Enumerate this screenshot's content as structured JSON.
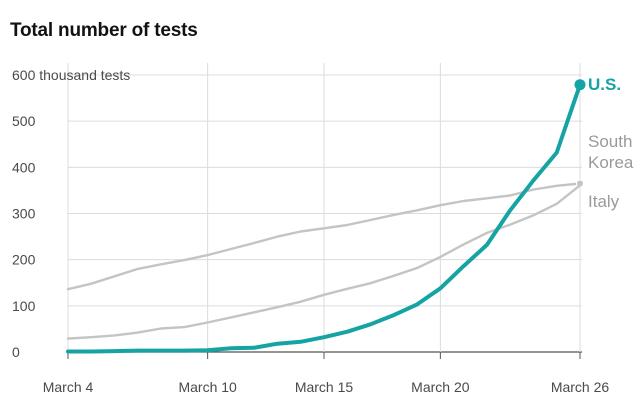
{
  "chart_data": {
    "type": "line",
    "title": "Total number of tests",
    "y_unit_label": "600 thousand tests",
    "y_ticks": [
      {
        "value": 600,
        "label": "600 thousand tests"
      },
      {
        "value": 500,
        "label": "500"
      },
      {
        "value": 400,
        "label": "400"
      },
      {
        "value": 300,
        "label": "300"
      },
      {
        "value": 200,
        "label": "200"
      },
      {
        "value": 100,
        "label": "100"
      },
      {
        "value": 0,
        "label": "0"
      }
    ],
    "x_ticks": [
      {
        "value": 4,
        "label": "March 4"
      },
      {
        "value": 10,
        "label": "March 10"
      },
      {
        "value": 15,
        "label": "March 15"
      },
      {
        "value": 20,
        "label": "March 20"
      },
      {
        "value": 26,
        "label": "March 26"
      }
    ],
    "x_unit": "day of March",
    "xlim": [
      4,
      26
    ],
    "ylim": [
      0,
      600
    ],
    "grid": true,
    "series": [
      {
        "name": "South Korea",
        "label_lines": [
          "South",
          "Korea"
        ],
        "color": "#c4c4c4",
        "label_color": "#9a9a9a",
        "x": [
          4,
          5,
          6,
          7,
          8,
          9,
          10,
          11,
          12,
          13,
          14,
          15,
          16,
          17,
          18,
          19,
          20,
          21,
          22,
          23,
          24,
          25,
          26
        ],
        "y": [
          136,
          148,
          164,
          180,
          190,
          199,
          210,
          223,
          236,
          250,
          261,
          268,
          275,
          286,
          297,
          307,
          318,
          327,
          333,
          339,
          352,
          360,
          365
        ]
      },
      {
        "name": "Italy",
        "label_lines": [
          "Italy"
        ],
        "color": "#c4c4c4",
        "label_color": "#9a9a9a",
        "x": [
          4,
          5,
          6,
          7,
          8,
          9,
          10,
          11,
          12,
          13,
          14,
          15,
          16,
          17,
          18,
          19,
          20,
          21,
          22,
          23,
          24,
          25,
          26
        ],
        "y": [
          29,
          32,
          36,
          42,
          51,
          54,
          64,
          75,
          86,
          97,
          109,
          124,
          137,
          149,
          165,
          182,
          206,
          233,
          258,
          276,
          296,
          321,
          361
        ]
      },
      {
        "name": "U.S.",
        "label_lines": [
          "U.S."
        ],
        "color": "#16a3a3",
        "label_color": "#16a3a3",
        "x": [
          4,
          5,
          6,
          7,
          8,
          9,
          10,
          11,
          12,
          13,
          14,
          15,
          16,
          17,
          18,
          19,
          20,
          21,
          22,
          23,
          24,
          25,
          26
        ],
        "y": [
          1,
          1,
          2,
          3,
          3,
          3,
          4,
          8,
          9,
          18,
          22,
          32,
          44,
          60,
          80,
          103,
          138,
          186,
          232,
          307,
          372,
          432,
          579
        ]
      }
    ]
  }
}
